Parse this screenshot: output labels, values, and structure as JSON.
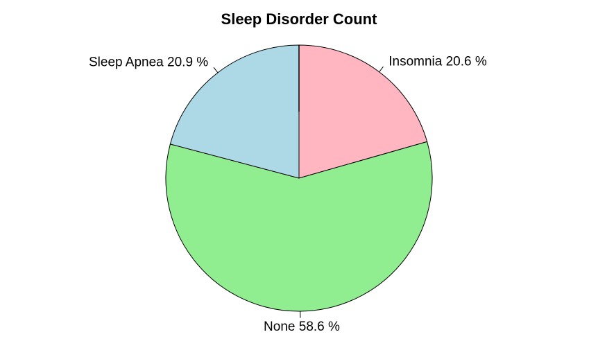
{
  "chart_data": {
    "type": "pie",
    "title": "Sleep Disorder Count",
    "start": "12 o'clock",
    "direction": "clockwise",
    "slices": [
      {
        "label": "Insomnia",
        "text": "Insomnia 20.6 %",
        "value": 20.6,
        "color": "#FFB6C1"
      },
      {
        "label": "None",
        "text": "None 58.6 %",
        "value": 58.6,
        "color": "#90EE90"
      },
      {
        "label": "Sleep Apnea",
        "text": "Sleep Apnea 20.9 %",
        "value": 20.9,
        "color": "#ADD8E6"
      }
    ]
  }
}
